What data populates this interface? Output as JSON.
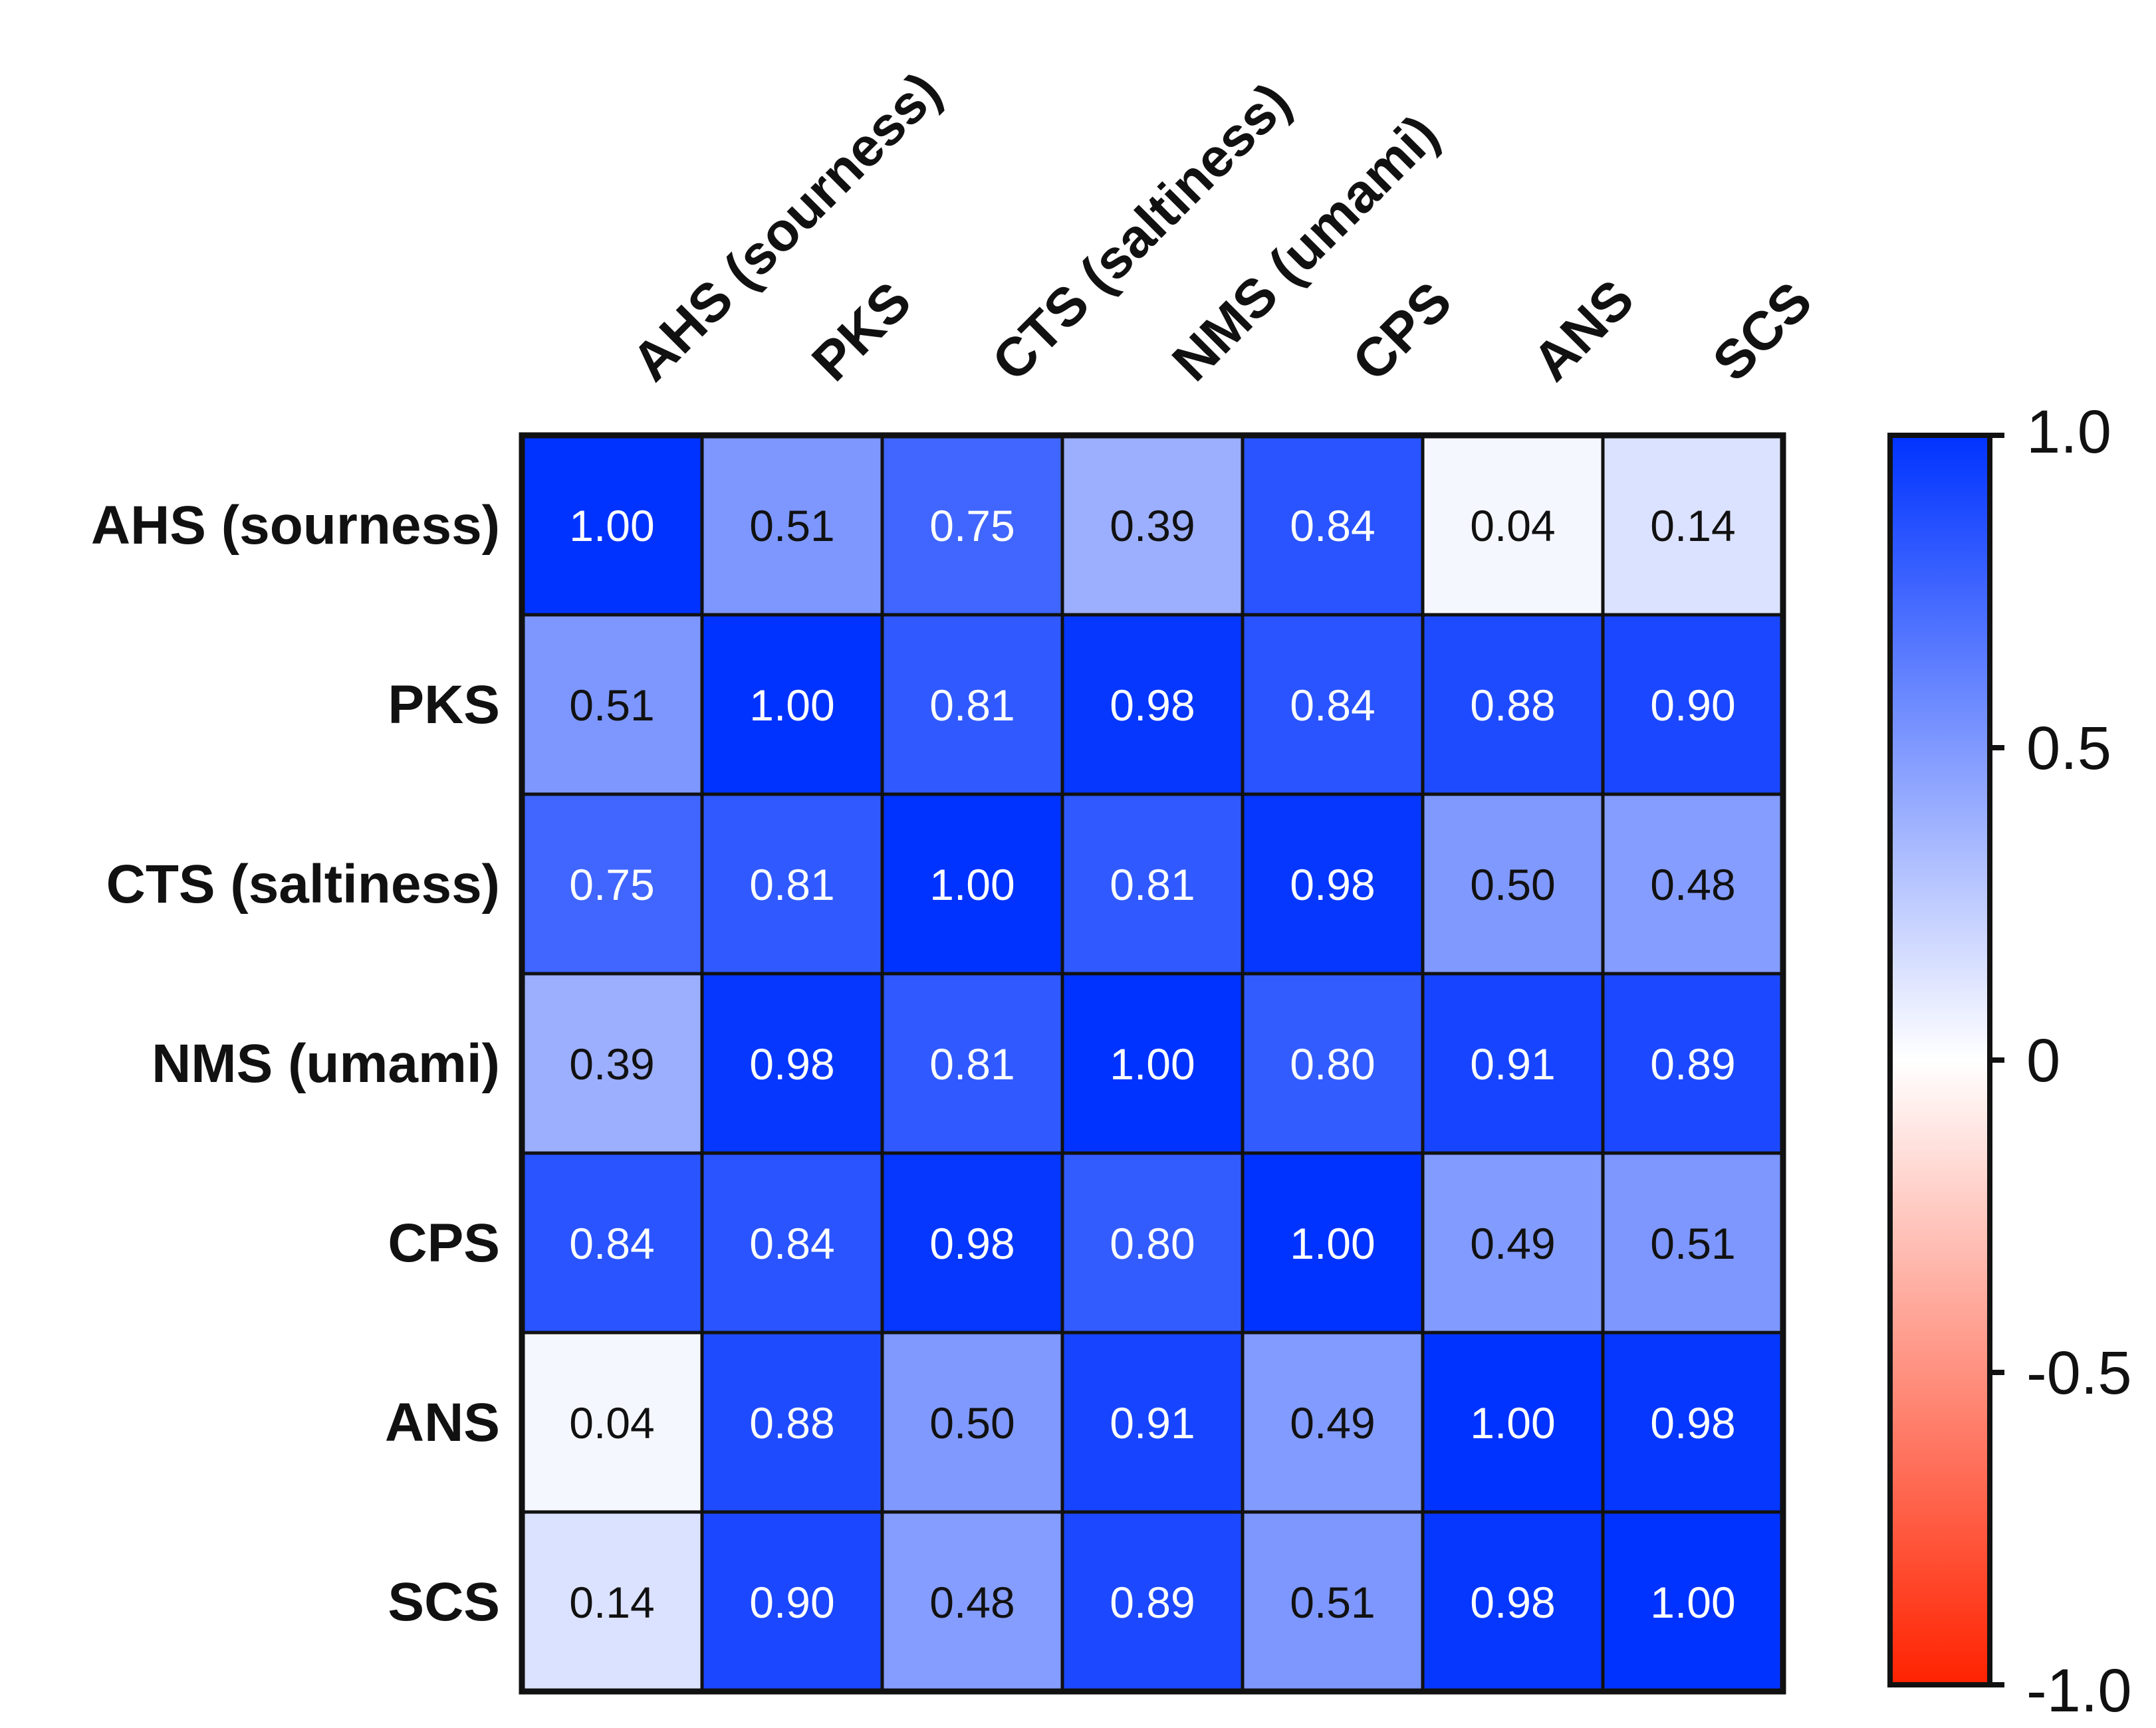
{
  "chart_data": {
    "type": "heatmap",
    "title": "",
    "row_labels": [
      "AHS (sourness)",
      "PKS",
      "CTS (saltiness)",
      "NMS (umami)",
      "CPS",
      "ANS",
      "SCS"
    ],
    "col_labels": [
      "AHS (sourness)",
      "PKS",
      "CTS (saltiness)",
      "NMS (umami)",
      "CPS",
      "ANS",
      "SCS"
    ],
    "values": [
      [
        1.0,
        0.51,
        0.75,
        0.39,
        0.84,
        0.04,
        0.14
      ],
      [
        0.51,
        1.0,
        0.81,
        0.98,
        0.84,
        0.88,
        0.9
      ],
      [
        0.75,
        0.81,
        1.0,
        0.81,
        0.98,
        0.5,
        0.48
      ],
      [
        0.39,
        0.98,
        0.81,
        1.0,
        0.8,
        0.91,
        0.89
      ],
      [
        0.84,
        0.84,
        0.98,
        0.8,
        1.0,
        0.49,
        0.51
      ],
      [
        0.04,
        0.88,
        0.5,
        0.91,
        0.49,
        1.0,
        0.98
      ],
      [
        0.14,
        0.9,
        0.48,
        0.89,
        0.51,
        0.98,
        1.0
      ]
    ],
    "value_labels": [
      [
        "1.00",
        "0.51",
        "0.75",
        "0.39",
        "0.84",
        "0.04",
        "0.14"
      ],
      [
        "0.51",
        "1.00",
        "0.81",
        "0.98",
        "0.84",
        "0.88",
        "0.90"
      ],
      [
        "0.75",
        "0.81",
        "1.00",
        "0.81",
        "0.98",
        "0.50",
        "0.48"
      ],
      [
        "0.39",
        "0.98",
        "0.81",
        "1.00",
        "0.80",
        "0.91",
        "0.89"
      ],
      [
        "0.84",
        "0.84",
        "0.98",
        "0.80",
        "1.00",
        "0.49",
        "0.51"
      ],
      [
        "0.04",
        "0.88",
        "0.50",
        "0.91",
        "0.49",
        "1.00",
        "0.98"
      ],
      [
        "0.14",
        "0.90",
        "0.48",
        "0.89",
        "0.51",
        "0.98",
        "1.00"
      ]
    ],
    "colorbar": {
      "range": [
        -1.0,
        1.0
      ],
      "ticks": [
        1.0,
        0.5,
        0,
        -0.5,
        -1.0
      ],
      "tick_labels": [
        "1.0",
        "0.5",
        "0",
        "-0.5",
        "-1.0"
      ],
      "colors": {
        "high": "#0033ff",
        "mid": "#ffffff",
        "low": "#ff2200"
      }
    },
    "text_colors": {
      "dark": "#111111",
      "light": "#ffffff"
    }
  }
}
